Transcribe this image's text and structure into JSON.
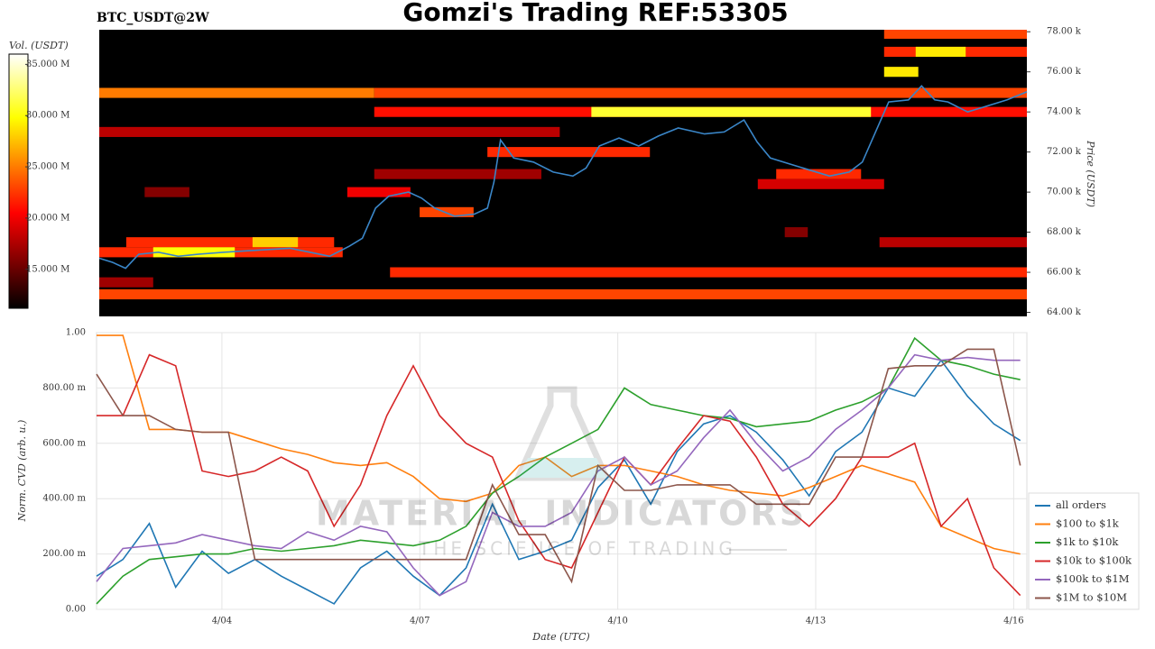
{
  "title": "Gomzi's Trading REF:53305",
  "watermark": {
    "title": "MATERIAL INDICATORS",
    "subtitle": "THE SCIENCE OF TRADING"
  },
  "chart_data": [
    {
      "type": "heatmap",
      "label": "BTC_USDT@2W",
      "ylabel": "Price (USDT)",
      "xlim": [
        2.1,
        16.2
      ],
      "ylim": [
        63800,
        78100
      ],
      "yticks": [
        {
          "value": 64000,
          "label": "64.00 k"
        },
        {
          "value": 66000,
          "label": "66.00 k"
        },
        {
          "value": 68000,
          "label": "68.00 k"
        },
        {
          "value": 70000,
          "label": "70.00 k"
        },
        {
          "value": 72000,
          "label": "72.00 k"
        },
        {
          "value": 74000,
          "label": "74.00 k"
        },
        {
          "value": 76000,
          "label": "76.00 k"
        },
        {
          "value": 78000,
          "label": "78.00 k"
        }
      ],
      "colorbar": {
        "label": "Vol. (USDT)",
        "lim": [
          11.2,
          36
        ],
        "ticks": [
          {
            "value": 15,
            "label": "15.000 M"
          },
          {
            "value": 20,
            "label": "20.000 M"
          },
          {
            "value": 25,
            "label": "25.000 M"
          },
          {
            "value": 30,
            "label": "30.000 M"
          },
          {
            "value": 35,
            "label": "35.000 M"
          }
        ]
      },
      "bucket_size": 500,
      "bands": [
        {
          "price": 64900,
          "start": 2.1,
          "end": 16.2,
          "volume": 23
        },
        {
          "price": 66000,
          "start": 6.52,
          "end": 16.2,
          "volume": 22
        },
        {
          "price": 74950,
          "start": 2.1,
          "end": 6.28,
          "volume": 25
        },
        {
          "price": 74950,
          "start": 6.28,
          "end": 16.2,
          "volume": 23
        },
        {
          "price": 74000,
          "start": 6.28,
          "end": 16.2,
          "volume": 21
        },
        {
          "price": 74000,
          "start": 9.58,
          "end": 13.83,
          "volume": 31
        },
        {
          "price": 73000,
          "start": 2.1,
          "end": 9.1,
          "volume": 18
        },
        {
          "price": 76000,
          "start": 14.03,
          "end": 14.55,
          "volume": 29
        },
        {
          "price": 77000,
          "start": 14.03,
          "end": 16.2,
          "volume": 22
        },
        {
          "price": 77000,
          "start": 14.51,
          "end": 15.27,
          "volume": 29
        },
        {
          "price": 77900,
          "start": 14.03,
          "end": 16.2,
          "volume": 23
        },
        {
          "price": 72000,
          "start": 8.0,
          "end": 10.47,
          "volume": 22
        },
        {
          "price": 70900,
          "start": 6.28,
          "end": 8.82,
          "volume": 17
        },
        {
          "price": 70900,
          "start": 12.39,
          "end": 13.68,
          "volume": 22
        },
        {
          "price": 70400,
          "start": 12.11,
          "end": 14.03,
          "volume": 19
        },
        {
          "price": 70000,
          "start": 2.79,
          "end": 3.47,
          "volume": 16
        },
        {
          "price": 70000,
          "start": 5.87,
          "end": 6.83,
          "volume": 20
        },
        {
          "price": 69000,
          "start": 6.97,
          "end": 7.79,
          "volume": 23
        },
        {
          "price": 67500,
          "start": 13.96,
          "end": 16.2,
          "volume": 18
        },
        {
          "price": 67500,
          "start": 2.51,
          "end": 5.67,
          "volume": 22
        },
        {
          "price": 67500,
          "start": 4.43,
          "end": 5.12,
          "volume": 28
        },
        {
          "price": 67000,
          "start": 2.1,
          "end": 5.8,
          "volume": 22
        },
        {
          "price": 67000,
          "start": 2.92,
          "end": 4.16,
          "volume": 30
        },
        {
          "price": 65500,
          "start": 2.1,
          "end": 2.92,
          "volume": 17
        },
        {
          "price": 68000,
          "start": 12.52,
          "end": 12.87,
          "volume": 16
        }
      ],
      "price_line": {
        "color": "#3a86c8",
        "x": [
          2.1,
          2.3,
          2.5,
          2.7,
          3.0,
          3.3,
          3.6,
          4.0,
          4.5,
          5.0,
          5.3,
          5.6,
          5.9,
          6.1,
          6.3,
          6.5,
          6.8,
          7.0,
          7.2,
          7.5,
          7.8,
          8.0,
          8.1,
          8.2,
          8.4,
          8.7,
          9.0,
          9.3,
          9.5,
          9.7,
          10.0,
          10.3,
          10.6,
          10.9,
          11.3,
          11.6,
          11.9,
          12.1,
          12.3,
          12.6,
          12.9,
          13.2,
          13.5,
          13.7,
          13.9,
          14.1,
          14.4,
          14.6,
          14.8,
          15.0,
          15.3,
          15.6,
          15.9,
          16.2
        ],
        "values": [
          66700,
          66500,
          66200,
          66900,
          67000,
          66800,
          66900,
          67000,
          67100,
          67200,
          67000,
          66800,
          67300,
          67700,
          69200,
          69800,
          70000,
          69700,
          69200,
          68800,
          68900,
          69200,
          70500,
          72600,
          71700,
          71500,
          71000,
          70800,
          71200,
          72300,
          72700,
          72300,
          72800,
          73200,
          72900,
          73000,
          73600,
          72500,
          71700,
          71400,
          71100,
          70800,
          71000,
          71500,
          73000,
          74500,
          74600,
          75300,
          74600,
          74500,
          74000,
          74300,
          74600,
          75000
        ]
      }
    },
    {
      "type": "line",
      "xlabel": "Date (UTC)",
      "ylabel": "Norm. CVD (arb. u.)",
      "xlim": [
        2.1,
        16.2
      ],
      "ylim": [
        0,
        1
      ],
      "xticks": [
        {
          "value": 4,
          "label": "4/04"
        },
        {
          "value": 7,
          "label": "4/07"
        },
        {
          "value": 10,
          "label": "4/10"
        },
        {
          "value": 13,
          "label": "4/13"
        },
        {
          "value": 16,
          "label": "4/16"
        }
      ],
      "yticks": [
        {
          "value": 0,
          "label": "0.00"
        },
        {
          "value": 0.2,
          "label": "200.00 m"
        },
        {
          "value": 0.4,
          "label": "400.00 m"
        },
        {
          "value": 0.6,
          "label": "600.00 m"
        },
        {
          "value": 0.8,
          "label": "800.00 m"
        },
        {
          "value": 1,
          "label": "1.00"
        }
      ],
      "grid": true,
      "legend": "right",
      "x": [
        2.1,
        2.5,
        2.9,
        3.3,
        3.7,
        4.1,
        4.5,
        4.9,
        5.3,
        5.7,
        6.1,
        6.5,
        6.9,
        7.3,
        7.7,
        8.1,
        8.5,
        8.9,
        9.3,
        9.7,
        10.1,
        10.5,
        10.9,
        11.3,
        11.7,
        12.1,
        12.5,
        12.9,
        13.3,
        13.7,
        14.1,
        14.5,
        14.9,
        15.3,
        15.7,
        16.1
      ],
      "series": [
        {
          "name": "all orders",
          "color": "#1f77b4",
          "values": [
            0.12,
            0.18,
            0.31,
            0.08,
            0.21,
            0.13,
            0.18,
            0.12,
            0.07,
            0.02,
            0.15,
            0.21,
            0.12,
            0.05,
            0.15,
            0.38,
            0.18,
            0.21,
            0.25,
            0.44,
            0.54,
            0.38,
            0.57,
            0.67,
            0.7,
            0.64,
            0.54,
            0.41,
            0.57,
            0.64,
            0.8,
            0.77,
            0.9,
            0.77,
            0.67,
            0.61
          ]
        },
        {
          "name": "$100 to $1k",
          "color": "#ff7f0e",
          "values": [
            0.99,
            0.99,
            0.65,
            0.65,
            0.64,
            0.64,
            0.61,
            0.58,
            0.56,
            0.53,
            0.52,
            0.53,
            0.48,
            0.4,
            0.39,
            0.42,
            0.52,
            0.55,
            0.48,
            0.52,
            0.52,
            0.5,
            0.48,
            0.45,
            0.43,
            0.42,
            0.41,
            0.44,
            0.48,
            0.52,
            0.49,
            0.46,
            0.3,
            0.26,
            0.22,
            0.2
          ]
        },
        {
          "name": "$1k to $10k",
          "color": "#2ca02c",
          "values": [
            0.02,
            0.12,
            0.18,
            0.19,
            0.2,
            0.2,
            0.22,
            0.21,
            0.22,
            0.23,
            0.25,
            0.24,
            0.23,
            0.25,
            0.3,
            0.42,
            0.48,
            0.55,
            0.6,
            0.65,
            0.8,
            0.74,
            0.72,
            0.7,
            0.69,
            0.66,
            0.67,
            0.68,
            0.72,
            0.75,
            0.8,
            0.98,
            0.9,
            0.88,
            0.85,
            0.83
          ]
        },
        {
          "name": "$10k to $100k",
          "color": "#d62728",
          "values": [
            0.7,
            0.7,
            0.92,
            0.88,
            0.5,
            0.48,
            0.5,
            0.55,
            0.5,
            0.3,
            0.45,
            0.7,
            0.88,
            0.7,
            0.6,
            0.55,
            0.32,
            0.18,
            0.15,
            0.35,
            0.55,
            0.45,
            0.58,
            0.7,
            0.68,
            0.55,
            0.38,
            0.3,
            0.4,
            0.55,
            0.55,
            0.6,
            0.3,
            0.4,
            0.15,
            0.05
          ]
        },
        {
          "name": "$100k to $1M",
          "color": "#9467bd",
          "values": [
            0.1,
            0.22,
            0.23,
            0.24,
            0.27,
            0.25,
            0.23,
            0.22,
            0.28,
            0.25,
            0.3,
            0.28,
            0.15,
            0.05,
            0.1,
            0.35,
            0.3,
            0.3,
            0.35,
            0.5,
            0.55,
            0.45,
            0.5,
            0.62,
            0.72,
            0.6,
            0.5,
            0.55,
            0.65,
            0.72,
            0.8,
            0.92,
            0.9,
            0.91,
            0.9,
            0.9
          ]
        },
        {
          "name": "$1M to $10M",
          "color": "#8c564b",
          "values": [
            0.85,
            0.7,
            0.7,
            0.65,
            0.64,
            0.64,
            0.18,
            0.18,
            0.18,
            0.18,
            0.18,
            0.18,
            0.18,
            0.18,
            0.18,
            0.45,
            0.27,
            0.27,
            0.1,
            0.52,
            0.43,
            0.43,
            0.45,
            0.45,
            0.45,
            0.38,
            0.38,
            0.38,
            0.55,
            0.55,
            0.87,
            0.88,
            0.88,
            0.94,
            0.94,
            0.52
          ]
        }
      ]
    }
  ]
}
